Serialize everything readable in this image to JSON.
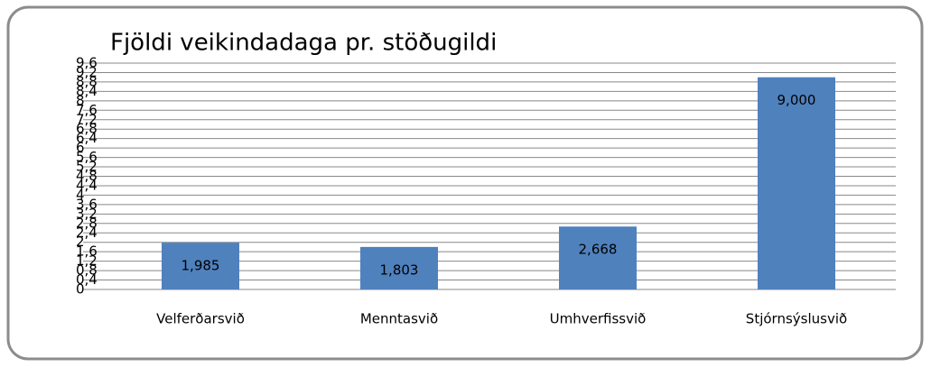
{
  "chart_data": {
    "type": "bar",
    "title": "Fjöldi veikindadaga pr. stöðugildi",
    "categories": [
      "Velferðarsvið",
      "Menntasvið",
      "Umhverfissvið",
      "Stjórnsýslusvið"
    ],
    "values": [
      1.985,
      1.803,
      2.668,
      9.0
    ],
    "value_labels": [
      "1,985",
      "1,803",
      "2,668",
      "9,000"
    ],
    "color": "#4f81bd",
    "ylim": [
      0,
      9.6
    ],
    "yticks": [
      0,
      {
        "value": 0.4,
        "label": "0,4"
      },
      {
        "value": 0.8,
        "label": "0,8"
      },
      {
        "value": 1.2,
        "label": "1,2"
      },
      {
        "value": 1.6,
        "label": "1,6"
      },
      2,
      {
        "value": 2.4,
        "label": "2,4"
      },
      {
        "value": 2.8,
        "label": "2,8"
      },
      {
        "value": 3.2,
        "label": "3,2"
      },
      {
        "value": 3.6,
        "label": "3,6"
      },
      4,
      {
        "value": 4.4,
        "label": "4,4"
      },
      {
        "value": 4.8,
        "label": "4,8"
      },
      {
        "value": 5.2,
        "label": "5,2"
      },
      {
        "value": 5.6,
        "label": "5,6"
      },
      6,
      {
        "value": 6.4,
        "label": "6,4"
      },
      {
        "value": 6.8,
        "label": "6,8"
      },
      {
        "value": 7.2,
        "label": "7,2"
      },
      {
        "value": 7.6,
        "label": "7,6"
      },
      8,
      {
        "value": 8.4,
        "label": "8,4"
      },
      {
        "value": 8.8,
        "label": "8,8"
      },
      {
        "value": 9.2,
        "label": "9,2"
      },
      {
        "value": 9.6,
        "label": "9,6"
      }
    ],
    "grid": true
  }
}
